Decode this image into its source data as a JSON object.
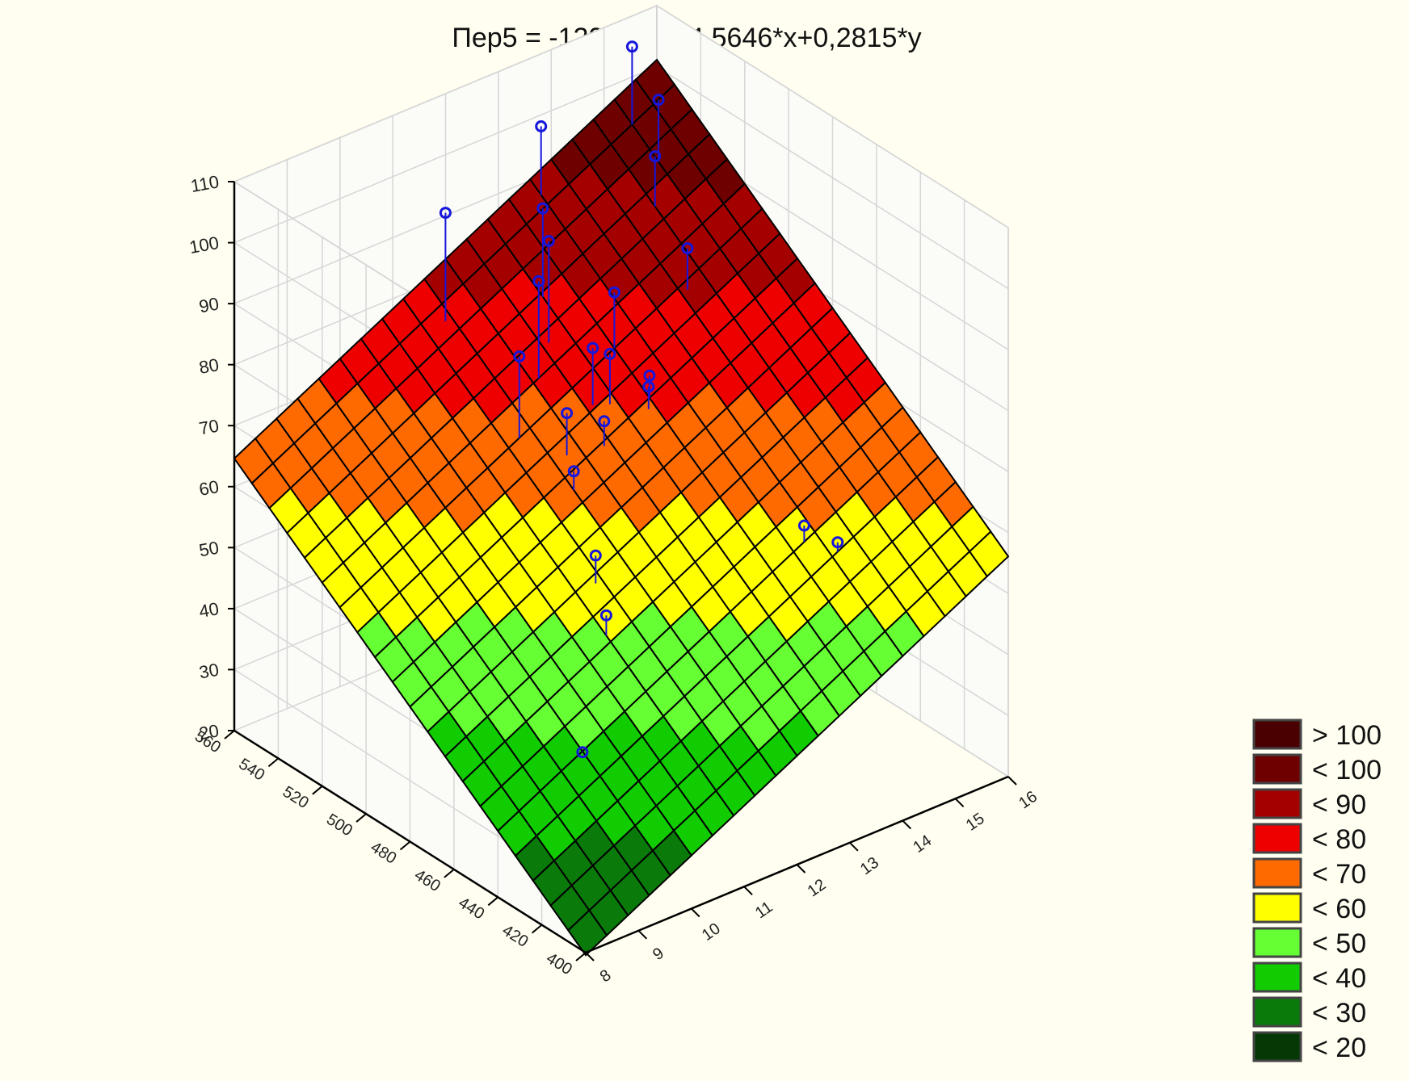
{
  "chart_data": {
    "type": "surface3d",
    "title": "Пер5 = -129,5347+4,5646*x+0,2815*y",
    "equation": {
      "intercept": -129.5347,
      "coef_x": 4.5646,
      "coef_y": 0.2815
    },
    "x_ticks": [
      "8",
      "9",
      "10",
      "11",
      "12",
      "13",
      "14",
      "15",
      "16"
    ],
    "y_ticks": [
      "400",
      "420",
      "440",
      "460",
      "480",
      "500",
      "520",
      "540",
      "560"
    ],
    "z_ticks": [
      "20",
      "30",
      "40",
      "50",
      "60",
      "70",
      "80",
      "90",
      "100",
      "110"
    ],
    "xlim": [
      8,
      16
    ],
    "ylim": [
      400,
      560
    ],
    "zlim": [
      20,
      110
    ],
    "scatter_points": [
      {
        "x": 15.2,
        "y": 552,
        "z": 108
      },
      {
        "x": 13.6,
        "y": 555,
        "z": 100
      },
      {
        "x": 15.2,
        "y": 540,
        "z": 102
      },
      {
        "x": 14.8,
        "y": 532,
        "z": 96
      },
      {
        "x": 11.5,
        "y": 548,
        "z": 95
      },
      {
        "x": 12.8,
        "y": 535,
        "z": 94
      },
      {
        "x": 12.5,
        "y": 525,
        "z": 92
      },
      {
        "x": 14.5,
        "y": 510,
        "z": 87
      },
      {
        "x": 12.1,
        "y": 520,
        "z": 88
      },
      {
        "x": 13.2,
        "y": 512,
        "z": 84
      },
      {
        "x": 11.4,
        "y": 512,
        "z": 80
      },
      {
        "x": 12.5,
        "y": 505,
        "z": 79
      },
      {
        "x": 12.7,
        "y": 502,
        "z": 78
      },
      {
        "x": 13.2,
        "y": 496,
        "z": 74
      },
      {
        "x": 13.1,
        "y": 494,
        "z": 73
      },
      {
        "x": 11.8,
        "y": 500,
        "z": 72
      },
      {
        "x": 12.3,
        "y": 495,
        "z": 70
      },
      {
        "x": 11.6,
        "y": 492,
        "z": 65
      },
      {
        "x": 11.1,
        "y": 470,
        "z": 58
      },
      {
        "x": 13.8,
        "y": 440,
        "z": 60
      },
      {
        "x": 14.1,
        "y": 432,
        "z": 58
      },
      {
        "x": 10.8,
        "y": 458,
        "z": 52
      },
      {
        "x": 9.6,
        "y": 440,
        "z": 38
      }
    ],
    "legend": {
      "placement": "bottom-right",
      "entries": [
        {
          "label": "> 100",
          "color": "#4a0000"
        },
        {
          "label": "< 100",
          "color": "#6e0000"
        },
        {
          "label": "< 90",
          "color": "#a50000"
        },
        {
          "label": "< 80",
          "color": "#ee0000"
        },
        {
          "label": "< 70",
          "color": "#ff6a00"
        },
        {
          "label": "< 60",
          "color": "#ffff00"
        },
        {
          "label": "< 50",
          "color": "#66ff33"
        },
        {
          "label": "< 40",
          "color": "#11cc00"
        },
        {
          "label": "< 30",
          "color": "#0a7a0a"
        },
        {
          "label": "< 20",
          "color": "#063806"
        }
      ]
    },
    "grid": true,
    "colors": {
      "background": "#fffef0",
      "point": "#1616dd",
      "mesh": "#000000"
    }
  }
}
